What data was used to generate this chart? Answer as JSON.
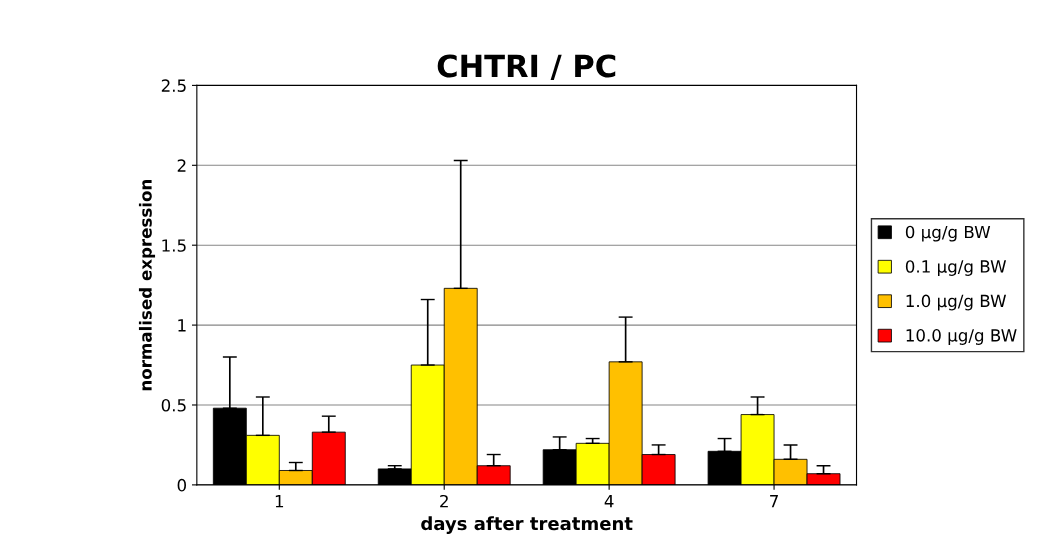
{
  "chart_data": {
    "type": "bar",
    "title": "CHTRI / PC",
    "xlabel": "days after treatment",
    "ylabel": "normalised expression",
    "categories": [
      "1",
      "2",
      "4",
      "7"
    ],
    "series": [
      {
        "name": "0 μg/g BW",
        "color": "#000000",
        "values": [
          0.48,
          0.1,
          0.22,
          0.21
        ],
        "errors": [
          [
            0.48,
            0.8
          ],
          [
            0.1,
            0.12
          ],
          [
            0.22,
            0.3
          ],
          [
            0.21,
            0.29
          ]
        ]
      },
      {
        "name": "0.1 μg/g BW",
        "color": "#ffff00",
        "values": [
          0.31,
          0.75,
          0.26,
          0.44
        ],
        "errors": [
          [
            0.31,
            0.55
          ],
          [
            0.75,
            1.16
          ],
          [
            0.26,
            0.29
          ],
          [
            0.44,
            0.55
          ]
        ]
      },
      {
        "name": "1.0 μg/g BW",
        "color": "#ffc000",
        "values": [
          0.09,
          1.23,
          0.77,
          0.16
        ],
        "errors": [
          [
            0.09,
            0.14
          ],
          [
            1.23,
            2.03
          ],
          [
            0.77,
            1.05
          ],
          [
            0.16,
            0.25
          ]
        ]
      },
      {
        "name": "10.0 μg/g BW",
        "color": "#ff0000",
        "values": [
          0.33,
          0.12,
          0.19,
          0.07
        ],
        "errors": [
          [
            0.33,
            0.43
          ],
          [
            0.12,
            0.19
          ],
          [
            0.19,
            0.25
          ],
          [
            0.07,
            0.12
          ]
        ]
      }
    ],
    "ylim": [
      0,
      2.5
    ],
    "yticks": [
      0,
      0.5,
      1,
      1.5,
      2,
      2.5
    ],
    "grid": "y",
    "legend": "right"
  }
}
